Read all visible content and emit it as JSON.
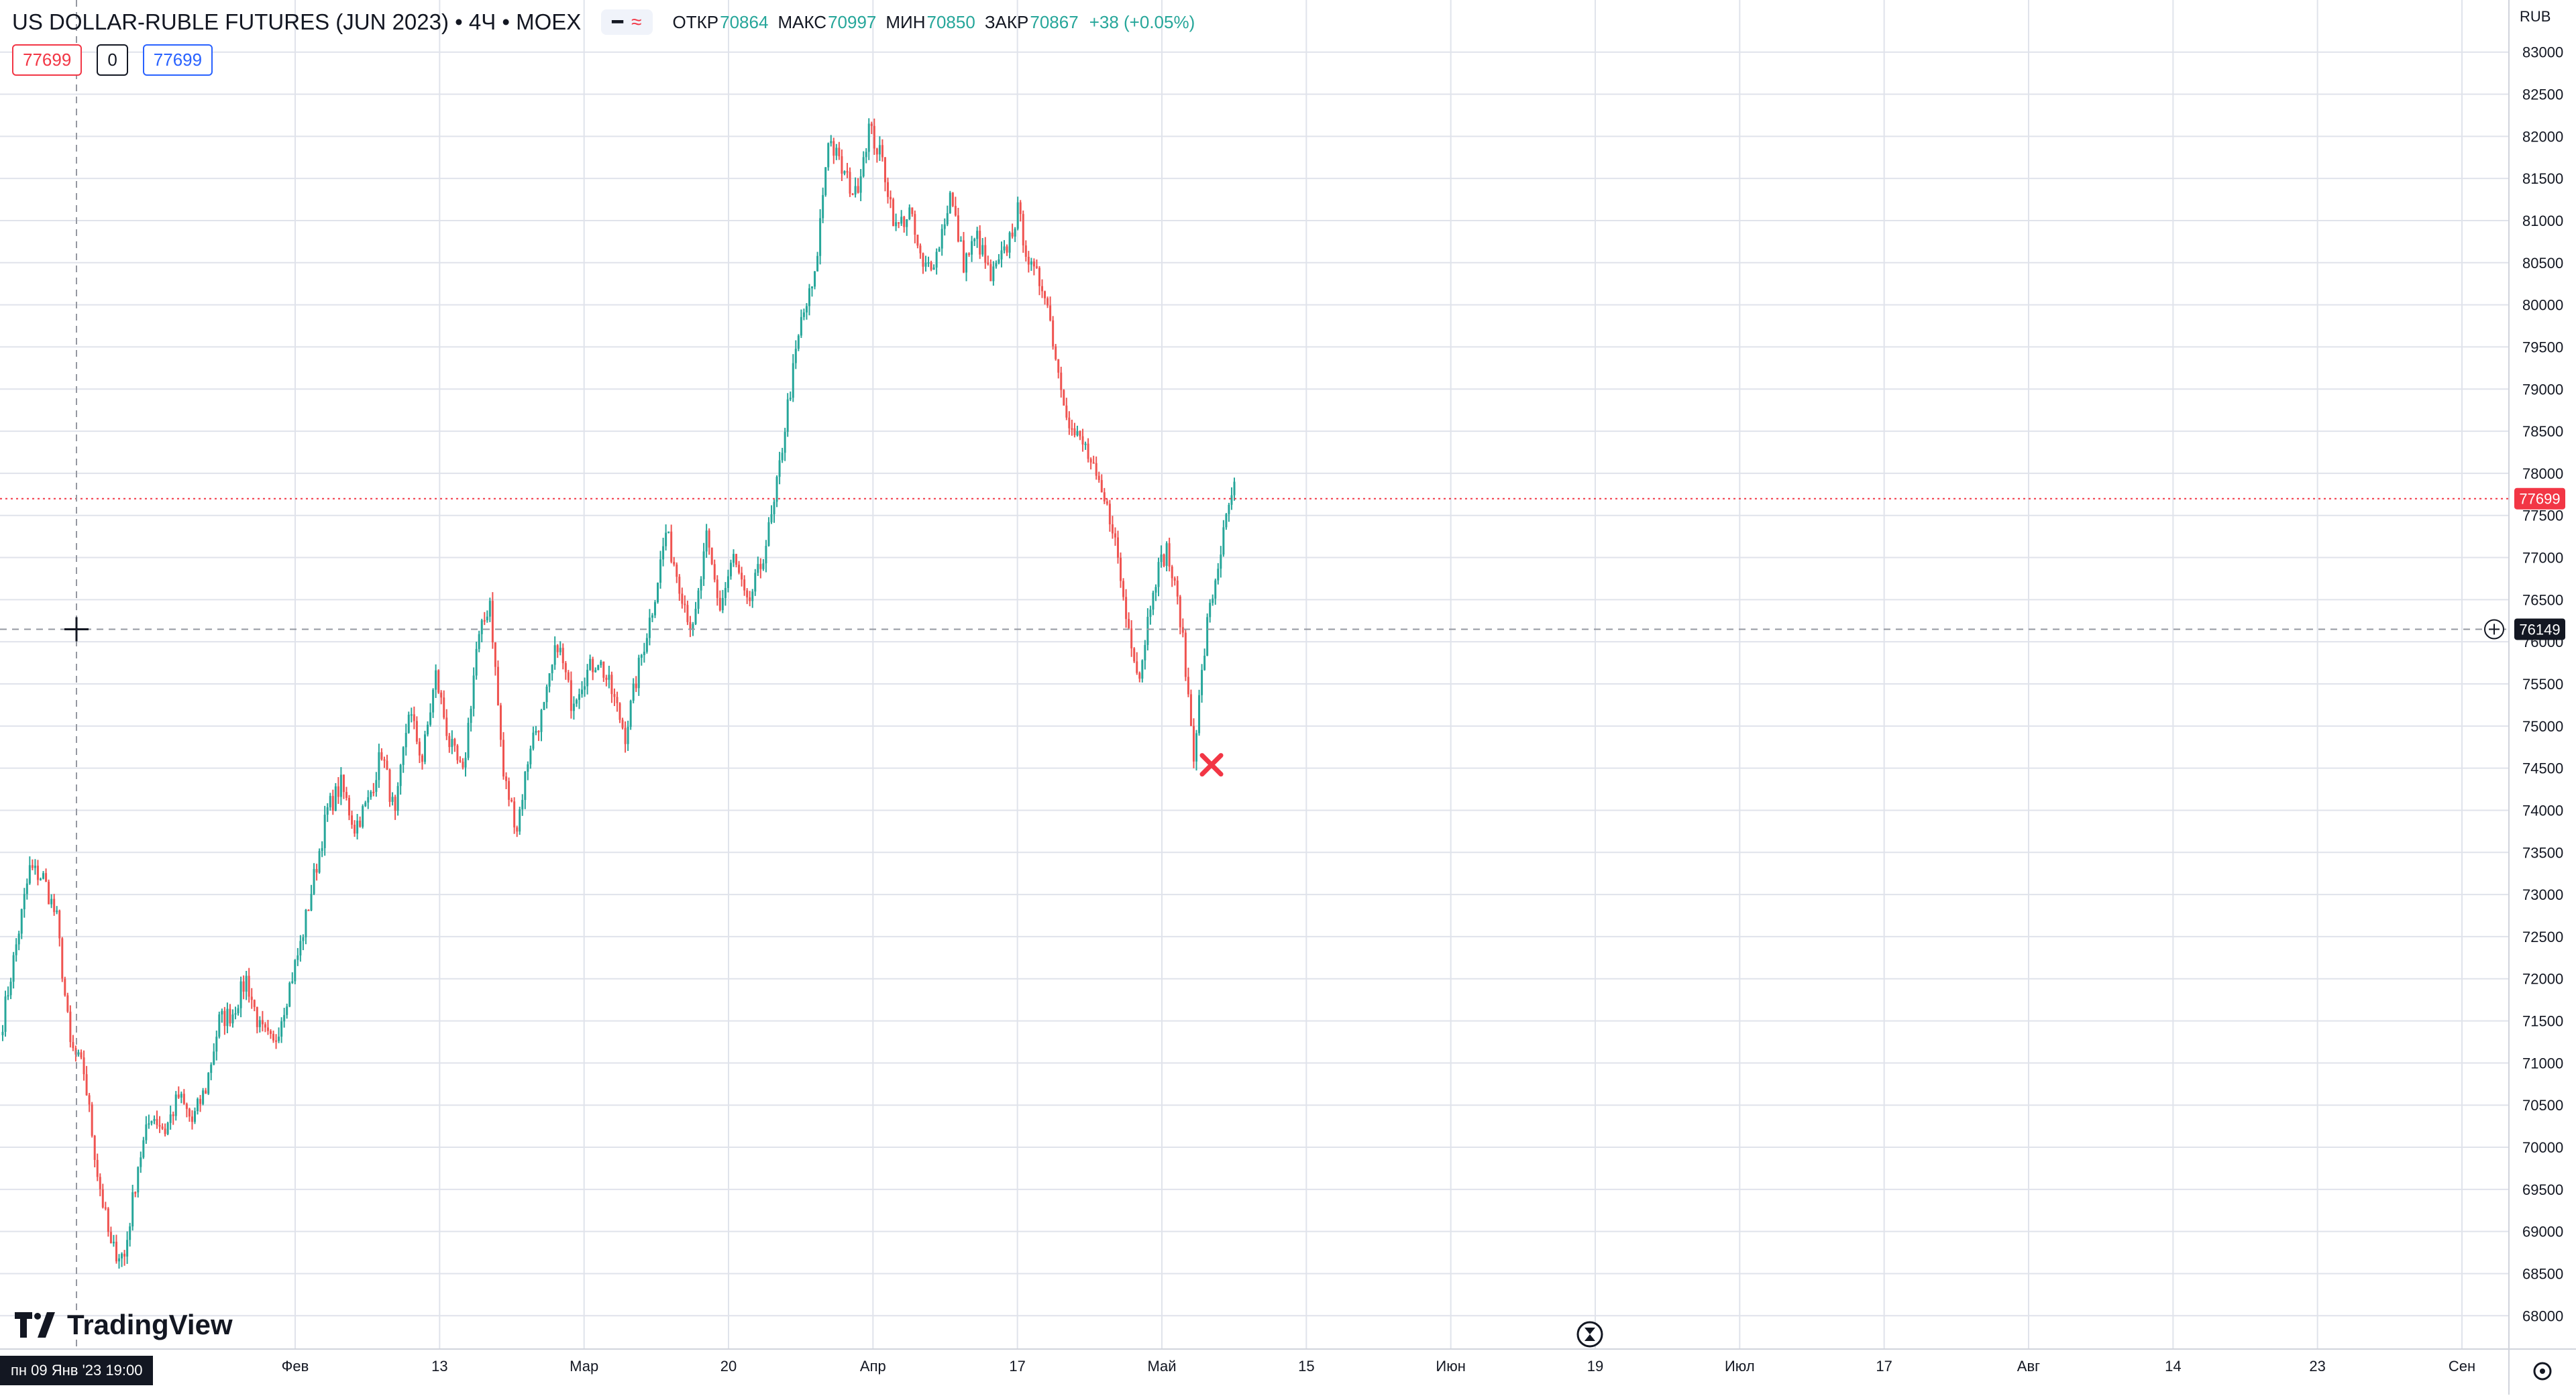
{
  "legend": {
    "title": "US DOLLAR-RUBLE FUTURES (JUN 2023) • 4Ч • MOEX",
    "toggle_icons": [
      "minus-icon",
      "wave-icon"
    ],
    "ohlc": [
      {
        "key": "ОТКР",
        "value": "70864"
      },
      {
        "key": "МАКС",
        "value": "70997"
      },
      {
        "key": "МИН",
        "value": "70850"
      },
      {
        "key": "ЗАКР",
        "value": "70867"
      },
      {
        "key": "",
        "value": "+38 (+0.05%)"
      }
    ]
  },
  "trade": {
    "sell": "77699",
    "spread": "0",
    "buy": "77699"
  },
  "branding": {
    "logo_text": "TradingView"
  },
  "axis": {
    "currency": "RUB",
    "price_min": 67700,
    "price_max": 83300,
    "tick_labels": [
      "68000",
      "68500",
      "69000",
      "69500",
      "70000",
      "70500",
      "71000",
      "71500",
      "72000",
      "72500",
      "73000",
      "73500",
      "74000",
      "74500",
      "75000",
      "75500",
      "76000",
      "76500",
      "77000",
      "77500",
      "78000",
      "78500",
      "79000",
      "79500",
      "80000",
      "80500",
      "81000",
      "81500",
      "82000",
      "82500",
      "83000"
    ],
    "time_labels": [
      "Фев",
      "13",
      "Мар",
      "20",
      "Апр",
      "17",
      "Май",
      "15",
      "Июн",
      "19",
      "Июл",
      "17",
      "Авг",
      "14",
      "23",
      "Сен"
    ],
    "current_price": "77699",
    "crosshair_price": "76149",
    "crosshair_time": "пн 09 Янв '23   19:00"
  },
  "colors": {
    "up": "#26a69a",
    "down": "#ef5350",
    "grid": "#e0e3eb",
    "current_price": "#f23645",
    "crosshair": "#9598a1",
    "marker": "#f23645"
  },
  "chart_data": {
    "type": "candlestick",
    "anchors": [
      71500,
      72400,
      73300,
      73200,
      72700,
      71200,
      70900,
      69700,
      68800,
      68700,
      69800,
      70400,
      70200,
      70600,
      70300,
      70700,
      71500,
      71600,
      72000,
      71400,
      71200,
      71800,
      72400,
      73200,
      74000,
      74300,
      73800,
      74100,
      74700,
      73900,
      75200,
      74600,
      75600,
      74800,
      74400,
      75900,
      76500,
      74400,
      73800,
      74800,
      75200,
      76000,
      75300,
      75600,
      75800,
      75400,
      74900,
      75700,
      76400,
      77300,
      76700,
      76100,
      77200,
      76400,
      77000,
      76400,
      76900,
      77600,
      78800,
      79800,
      80300,
      82000,
      81600,
      81300,
      82100,
      81700,
      80900,
      81100,
      80400,
      80600,
      81300,
      80500,
      80800,
      80300,
      80600,
      81100,
      80400,
      80200,
      79200,
      78500,
      78300,
      77800,
      77400,
      76300,
      75600,
      76700,
      77100,
      76300,
      74700,
      76200,
      77100,
      77900
    ]
  }
}
